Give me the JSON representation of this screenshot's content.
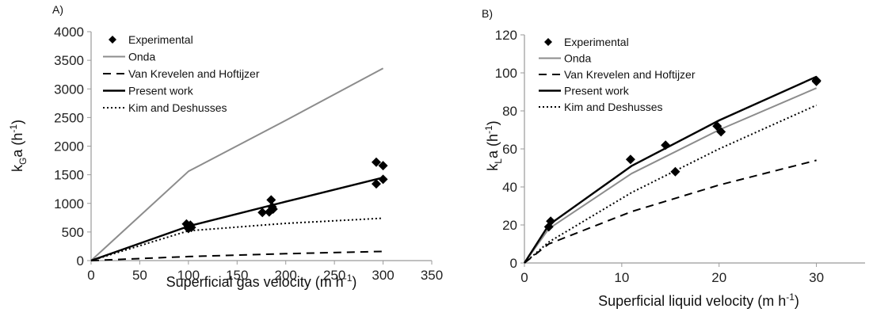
{
  "chart_data": [
    {
      "panel_label": "A)",
      "type": "line",
      "xlabel": "Superficial gas velocity (m h",
      "xlabel_sup": "-1",
      "xlabel_tail": ")",
      "ylabel_main": "k",
      "ylabel_sub": "G",
      "ylabel_tail": "a (h",
      "ylabel_sup": "-1",
      "ylabel_end": ")",
      "xlim": [
        0,
        350
      ],
      "ylim": [
        0,
        4000
      ],
      "xticks": [
        "0",
        "50",
        "100",
        "150",
        "200",
        "250",
        "300",
        "350"
      ],
      "yticks": [
        "0",
        "500",
        "1000",
        "1500",
        "2000",
        "2500",
        "3000",
        "3500",
        "4000"
      ],
      "grid": false,
      "legend_position": "top-left",
      "series": [
        {
          "name": "Experimental",
          "kind": "markers",
          "color": "#000000",
          "points": [
            [
              98,
              640
            ],
            [
              100,
              600
            ],
            [
              103,
              580
            ],
            [
              100,
              560
            ],
            [
              102,
              620
            ],
            [
              176,
              840
            ],
            [
              183,
              850
            ],
            [
              185,
              1060
            ],
            [
              186,
              940
            ],
            [
              187,
              900
            ],
            [
              293,
              1720
            ],
            [
              293,
              1340
            ],
            [
              300,
              1660
            ],
            [
              300,
              1420
            ]
          ]
        },
        {
          "name": "Onda",
          "kind": "line",
          "color": "#8c8c8c",
          "dash": "",
          "points": [
            [
              0,
              0
            ],
            [
              100,
              1560
            ],
            [
              200,
              2450
            ],
            [
              300,
              3360
            ]
          ]
        },
        {
          "name": "Van Krevelen and Hoftijzer",
          "kind": "line",
          "color": "#000000",
          "dash": "10,7",
          "points": [
            [
              0,
              0
            ],
            [
              100,
              70
            ],
            [
              200,
              120
            ],
            [
              300,
              160
            ]
          ]
        },
        {
          "name": "Present work",
          "kind": "line",
          "color": "#000000",
          "dash": "",
          "width": 2.4,
          "points": [
            [
              0,
              0
            ],
            [
              100,
              600
            ],
            [
              200,
              1030
            ],
            [
              300,
              1450
            ]
          ]
        },
        {
          "name": "Kim and Deshusses",
          "kind": "line",
          "color": "#000000",
          "dash": "2,3",
          "points": [
            [
              0,
              0
            ],
            [
              100,
              520
            ],
            [
              200,
              650
            ],
            [
              300,
              740
            ]
          ]
        }
      ]
    },
    {
      "panel_label": "B)",
      "type": "line",
      "xlabel": "Superficial liquid velocity (m h",
      "xlabel_sup": "-1",
      "xlabel_tail": ")",
      "ylabel_main": "k",
      "ylabel_sub": "L",
      "ylabel_tail": "a (h",
      "ylabel_sup": "-1",
      "ylabel_end": ")",
      "xlim": [
        0,
        35
      ],
      "ylim": [
        0,
        120
      ],
      "xticks": [
        "0",
        "10",
        "20",
        "30"
      ],
      "xtick_values": [
        0,
        10,
        20,
        30
      ],
      "yticks": [
        "0",
        "20",
        "40",
        "60",
        "80",
        "100",
        "120"
      ],
      "grid": false,
      "legend_position": "top-left",
      "series": [
        {
          "name": "Experimental",
          "kind": "markers",
          "color": "#000000",
          "points": [
            [
              2.5,
              19
            ],
            [
              2.7,
              22
            ],
            [
              10.9,
              54.5
            ],
            [
              14.5,
              62
            ],
            [
              15.5,
              48
            ],
            [
              19.8,
              72
            ],
            [
              20.2,
              69
            ],
            [
              30,
              96
            ],
            [
              30,
              95.5
            ]
          ]
        },
        {
          "name": "Onda",
          "kind": "line",
          "color": "#8c8c8c",
          "dash": "",
          "points": [
            [
              0,
              0
            ],
            [
              2.5,
              18
            ],
            [
              11,
              47
            ],
            [
              20,
              70
            ],
            [
              30,
              92
            ]
          ]
        },
        {
          "name": "Van Krevelen and Hoftijzer",
          "kind": "line",
          "color": "#000000",
          "dash": "10,7",
          "points": [
            [
              0,
              0
            ],
            [
              2.5,
              10
            ],
            [
              11,
              27
            ],
            [
              20,
              41
            ],
            [
              30,
              54
            ]
          ]
        },
        {
          "name": "Present work",
          "kind": "line",
          "color": "#000000",
          "dash": "",
          "width": 2.4,
          "points": [
            [
              0,
              0
            ],
            [
              2.5,
              20
            ],
            [
              11,
              51
            ],
            [
              20,
              75
            ],
            [
              30,
              98
            ]
          ]
        },
        {
          "name": "Kim and Deshusses",
          "kind": "line",
          "color": "#000000",
          "dash": "2,3",
          "points": [
            [
              0,
              0
            ],
            [
              2.5,
              11
            ],
            [
              11,
              37
            ],
            [
              20,
              60
            ],
            [
              30,
              83
            ]
          ]
        }
      ]
    }
  ]
}
